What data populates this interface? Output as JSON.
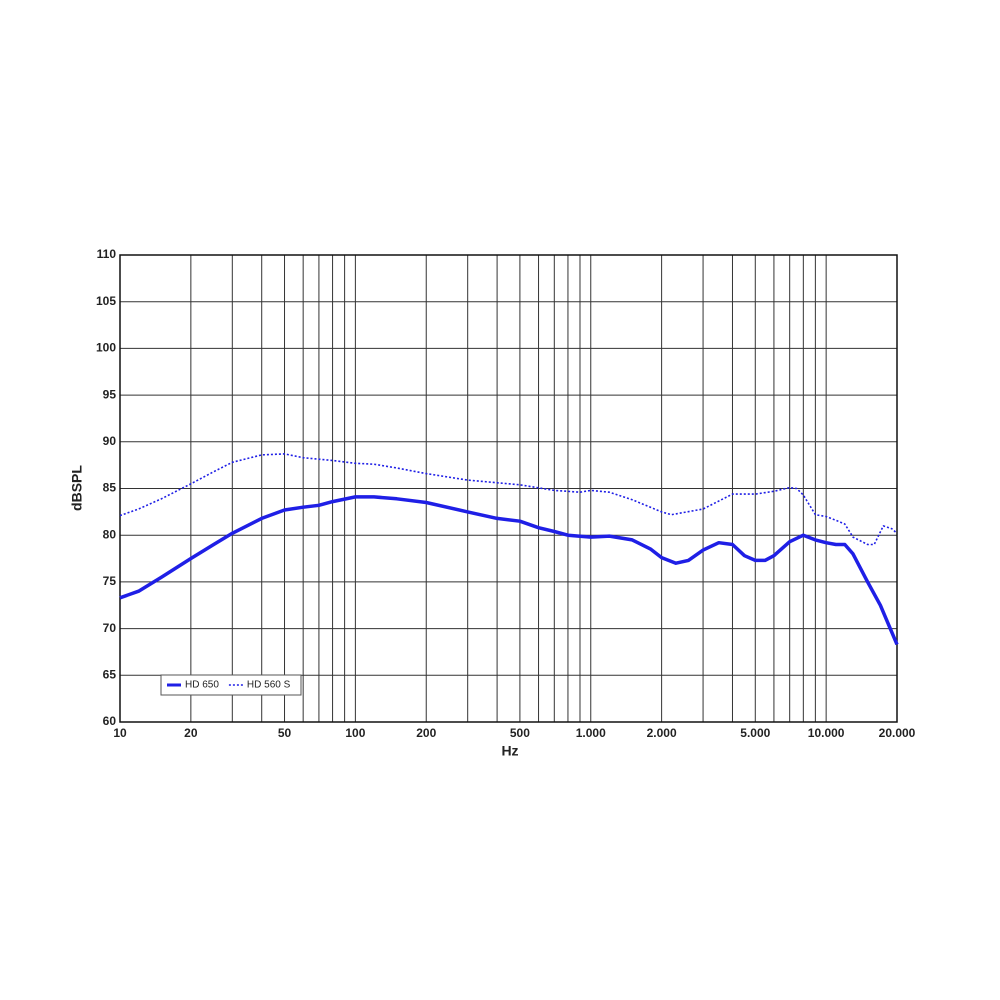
{
  "chart_data": {
    "type": "line",
    "xlabel": "Hz",
    "ylabel": "dBSPL",
    "xscale": "log",
    "xlim": [
      10,
      20000
    ],
    "ylim": [
      60,
      110
    ],
    "xticks": [
      10,
      20,
      50,
      100,
      200,
      500,
      {
        "value": 1000,
        "label": "1.000"
      },
      {
        "value": 2000,
        "label": "2.000"
      },
      {
        "value": 5000,
        "label": "5.000"
      },
      {
        "value": 10000,
        "label": "10.000"
      },
      {
        "value": 20000,
        "label": "20.000"
      }
    ],
    "xminor": [
      30,
      40,
      60,
      70,
      80,
      90,
      300,
      400,
      600,
      700,
      800,
      900,
      3000,
      4000,
      6000,
      7000,
      8000,
      9000
    ],
    "yticks": [
      60,
      65,
      70,
      75,
      80,
      85,
      90,
      95,
      100,
      105,
      110
    ],
    "grid": true,
    "legend": "lower left",
    "series": [
      {
        "name": "HD 650",
        "color": "#1f1fe6",
        "style": "solid",
        "x": [
          10,
          12,
          15,
          20,
          25,
          30,
          40,
          50,
          60,
          70,
          80,
          100,
          120,
          150,
          200,
          300,
          400,
          500,
          600,
          700,
          800,
          1000,
          1200,
          1500,
          1800,
          2000,
          2300,
          2600,
          3000,
          3500,
          4000,
          4500,
          5000,
          5500,
          6000,
          7000,
          8000,
          9000,
          10000,
          11000,
          12000,
          13000,
          15000,
          17000,
          20000
        ],
        "values": [
          73.3,
          74,
          75.5,
          77.5,
          79,
          80.2,
          81.8,
          82.7,
          83,
          83.2,
          83.6,
          84.1,
          84.1,
          83.9,
          83.5,
          82.5,
          81.8,
          81.5,
          80.8,
          80.4,
          80,
          79.8,
          79.9,
          79.5,
          78.5,
          77.6,
          77,
          77.3,
          78.4,
          79.2,
          79,
          77.8,
          77.3,
          77.3,
          77.8,
          79.3,
          80,
          79.5,
          79.2,
          79,
          79,
          78,
          75,
          72.5,
          68.3
        ]
      },
      {
        "name": "HD 560 S",
        "color": "#1f1fe6",
        "style": "dotted",
        "x": [
          10,
          12,
          15,
          20,
          25,
          30,
          40,
          50,
          60,
          80,
          100,
          120,
          150,
          200,
          300,
          500,
          700,
          900,
          1000,
          1200,
          1500,
          2000,
          2200,
          3000,
          4000,
          5000,
          6000,
          7000,
          7500,
          8000,
          9000,
          10000,
          11000,
          12000,
          13000,
          15000,
          16000,
          17500,
          19000,
          20000
        ],
        "values": [
          82.1,
          82.8,
          83.9,
          85.5,
          86.8,
          87.8,
          88.6,
          88.7,
          88.3,
          88,
          87.7,
          87.6,
          87.2,
          86.6,
          85.9,
          85.4,
          84.8,
          84.6,
          84.8,
          84.6,
          83.8,
          82.5,
          82.2,
          82.8,
          84.4,
          84.4,
          84.7,
          85.1,
          85,
          84.3,
          82.2,
          82,
          81.6,
          81.2,
          79.8,
          79,
          79,
          81,
          80.7,
          80.2
        ]
      }
    ]
  }
}
